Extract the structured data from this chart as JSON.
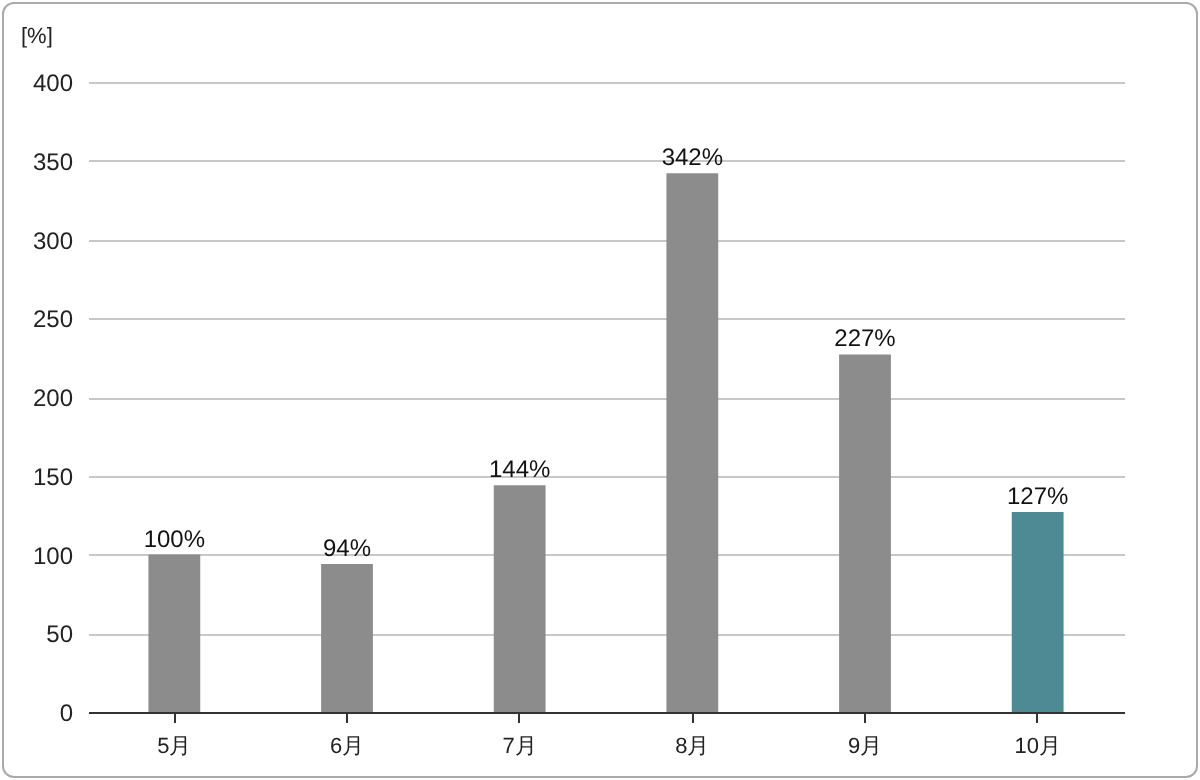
{
  "chart_data": {
    "type": "bar",
    "ylabel": "[%]",
    "categories": [
      "5月",
      "6月",
      "7月",
      "8月",
      "9月",
      "10月"
    ],
    "values": [
      100,
      94,
      144,
      342,
      227,
      127
    ],
    "value_labels": [
      "100%",
      "94%",
      "144%",
      "342%",
      "227%",
      "127%"
    ],
    "colors": [
      "#8c8c8c",
      "#8c8c8c",
      "#8c8c8c",
      "#8c8c8c",
      "#8c8c8c",
      "#4e8a93"
    ],
    "ylim": [
      0,
      400
    ],
    "yticks": [
      0,
      50,
      100,
      150,
      200,
      250,
      300,
      350,
      400
    ],
    "grid": "y"
  }
}
